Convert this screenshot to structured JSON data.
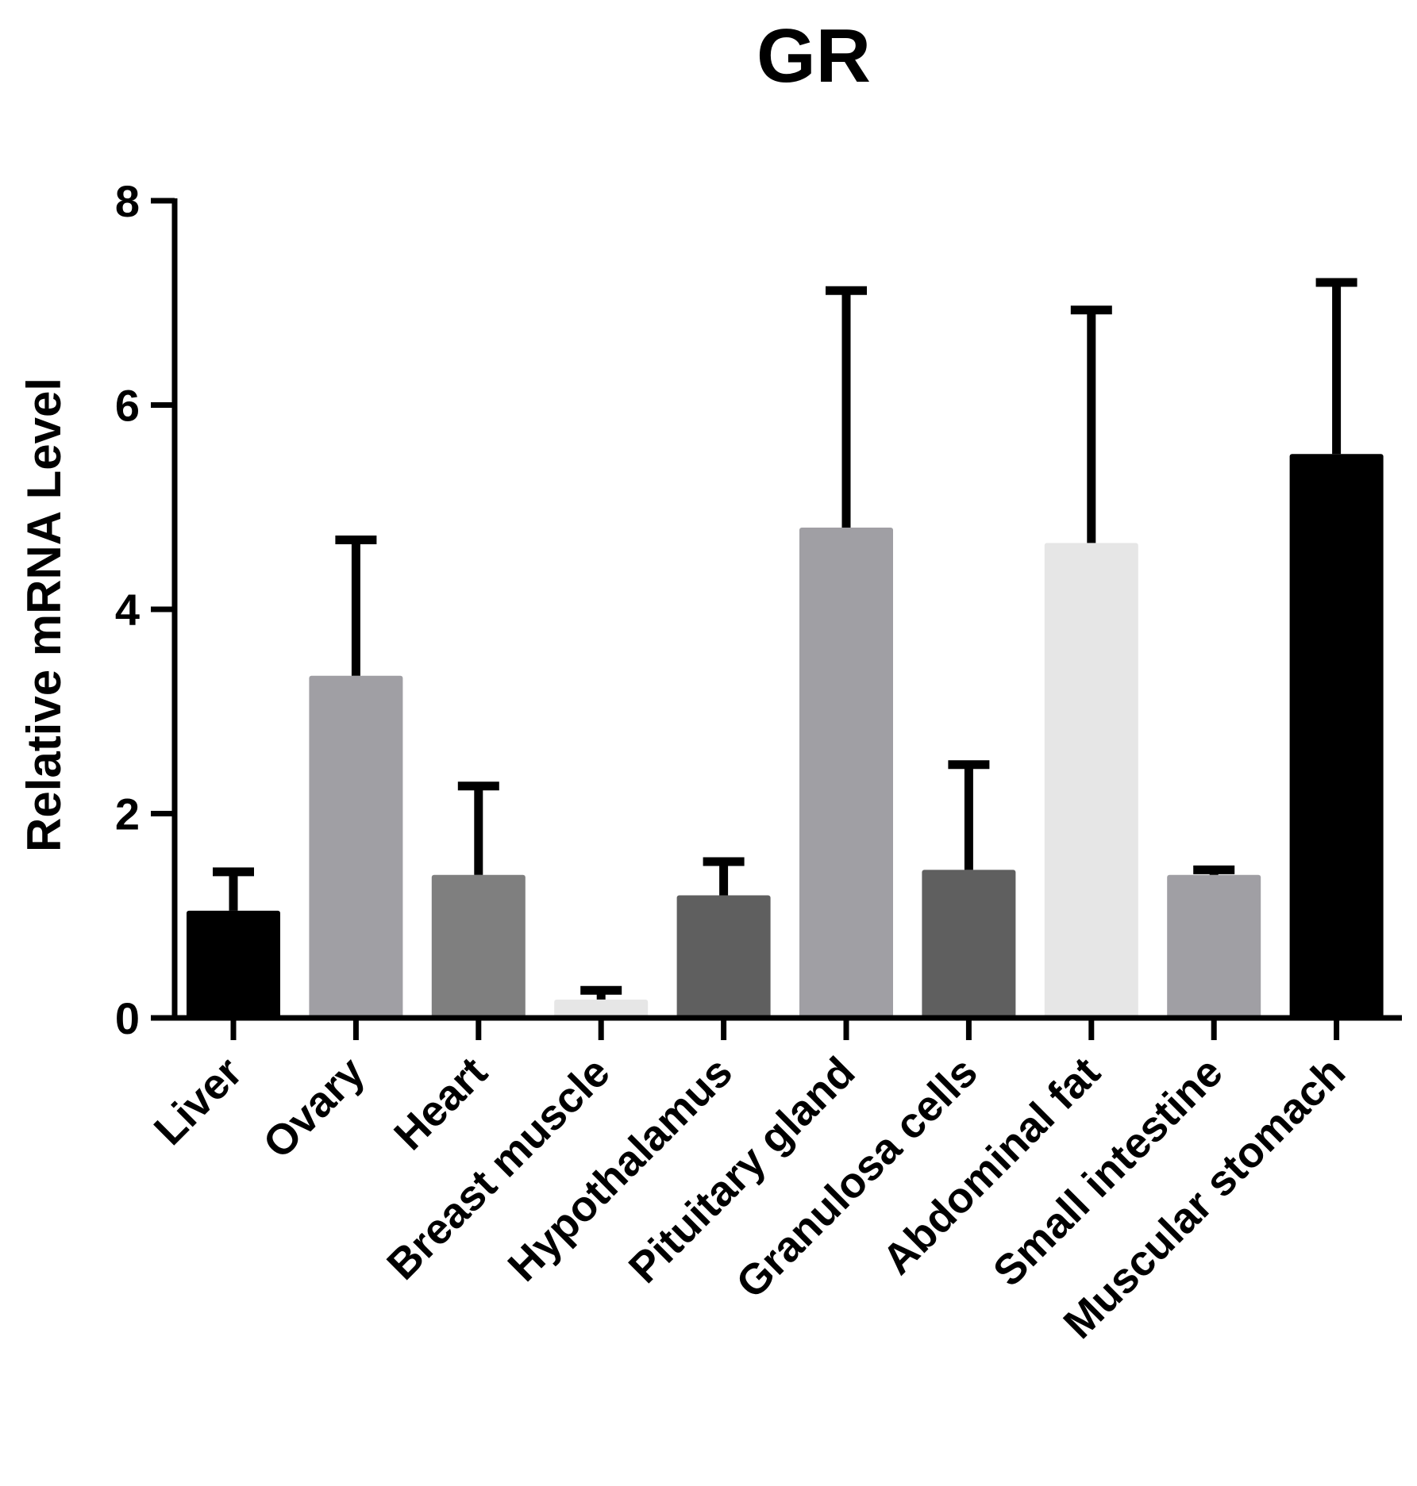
{
  "chart_data": {
    "type": "bar",
    "title": "GR",
    "xlabel": "",
    "ylabel": "Relative mRNA Level",
    "ylim": [
      0,
      8
    ],
    "yticks": [
      0,
      2,
      4,
      6,
      8
    ],
    "grid": false,
    "legend": "none",
    "categories": [
      "Liver",
      "Ovary",
      "Heart",
      "Breast muscle",
      "Hypothalamus",
      "Pituitary gland",
      "Granulosa cells",
      "Abdominal fat",
      "Small intestine",
      "Muscular stomach"
    ],
    "values": [
      1.05,
      3.35,
      1.4,
      0.18,
      1.2,
      4.8,
      1.45,
      4.65,
      1.4,
      5.52
    ],
    "error_upper": [
      1.43,
      4.68,
      2.27,
      0.27,
      1.53,
      7.12,
      2.48,
      6.93,
      1.45,
      7.2
    ],
    "bar_colors": [
      "#000000",
      "#a09fa4",
      "#7f7f7f",
      "#e6e6e6",
      "#5f5f5f",
      "#a09fa4",
      "#5f5f5f",
      "#e6e6e6",
      "#a09fa4",
      "#000000"
    ]
  }
}
